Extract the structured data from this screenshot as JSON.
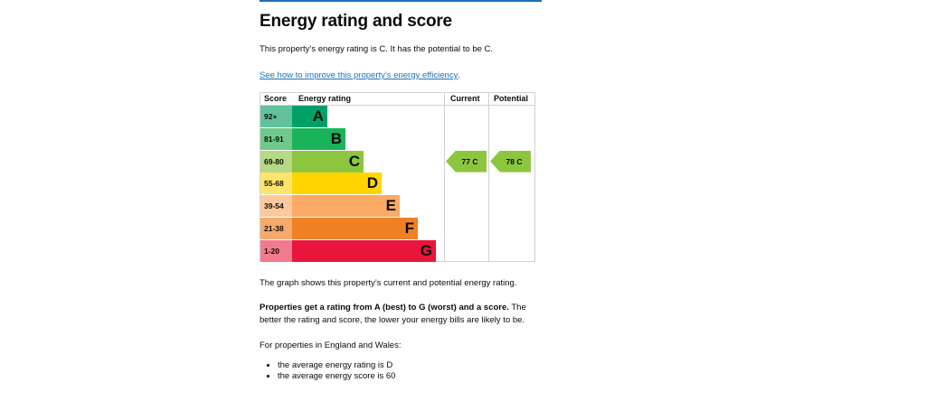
{
  "heading": "Energy rating and score",
  "intro": "This property’s energy rating is C. It has the potential to be C.",
  "improve_link": "See how to improve this property’s energy efficiency",
  "improve_link_tail": ".",
  "chart": {
    "headers": {
      "score": "Score",
      "rating": "Energy rating",
      "current": "Current",
      "potential": "Potential"
    },
    "bands": [
      {
        "score": "92+",
        "letter": "A",
        "color": "#00a069",
        "score_bg": "#61c19b"
      },
      {
        "score": "81-91",
        "letter": "B",
        "color": "#19b459",
        "score_bg": "#6ec98a"
      },
      {
        "score": "69-80",
        "letter": "C",
        "color": "#8cc63f",
        "score_bg": "#b6d985"
      },
      {
        "score": "55-68",
        "letter": "D",
        "color": "#ffd500",
        "score_bg": "#ffe46b"
      },
      {
        "score": "39-54",
        "letter": "E",
        "color": "#fcaa65",
        "score_bg": "#fdc99c"
      },
      {
        "score": "21-38",
        "letter": "F",
        "color": "#ef8023",
        "score_bg": "#f5aa6c"
      },
      {
        "score": "1-20",
        "letter": "G",
        "color": "#e9153b",
        "score_bg": "#f27a8e"
      }
    ],
    "current": {
      "label": "77 C",
      "score": 77,
      "rating": "C",
      "color": "#8cc63f"
    },
    "potential": {
      "label": "78 C",
      "score": 78,
      "rating": "C",
      "color": "#8cc63f"
    }
  },
  "graph_note": "The graph shows this property’s current and potential energy rating.",
  "rating_explain_bold": "Properties get a rating from A (best) to G (worst) and a score.",
  "rating_explain_rest": " The better the rating and score, the lower your energy bills are likely to be.",
  "region_note": "For properties in England and Wales:",
  "averages": [
    "the average energy rating is D",
    "the average energy score is 60"
  ]
}
